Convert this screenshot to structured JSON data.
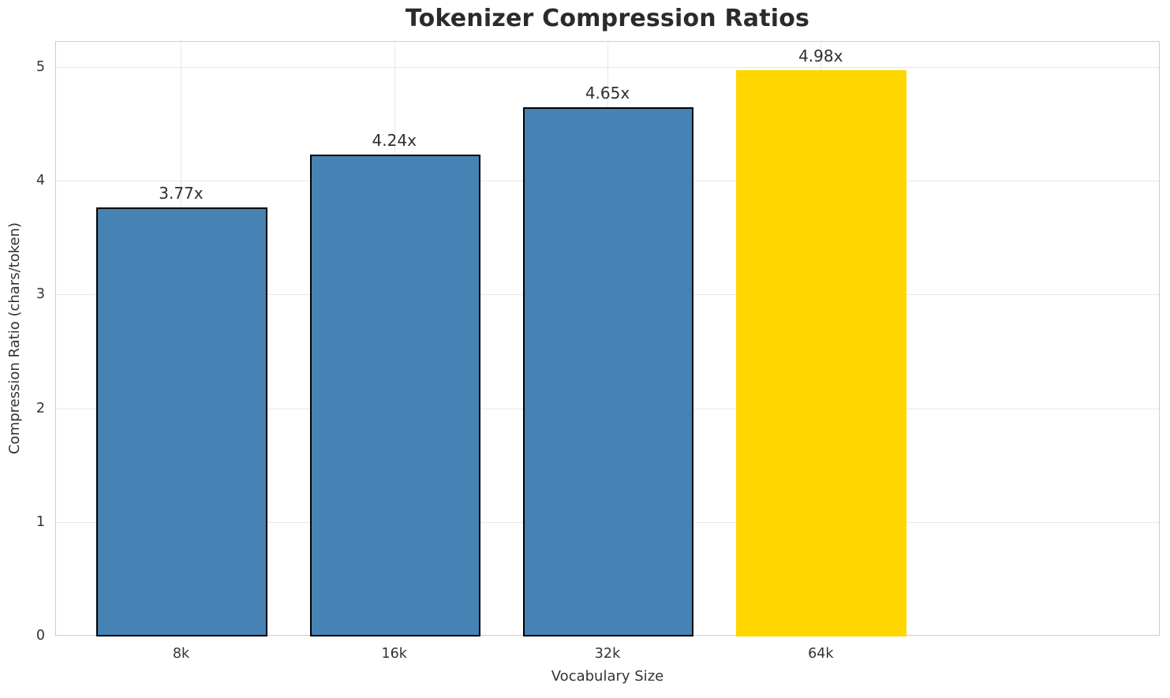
{
  "chart_data": {
    "type": "bar",
    "title": "Tokenizer Compression Ratios",
    "xlabel": "Vocabulary Size",
    "ylabel": "Compression Ratio (chars/token)",
    "categories": [
      "8k",
      "16k",
      "32k",
      "64k"
    ],
    "values": [
      3.77,
      4.24,
      4.65,
      4.98
    ],
    "bar_labels": [
      "3.77x",
      "4.24x",
      "4.65x",
      "4.98x"
    ],
    "bar_colors": [
      "#4682B4",
      "#4682B4",
      "#4682B4",
      "#FFD700"
    ],
    "bar_edge_colors": [
      "#000000",
      "#000000",
      "#000000",
      "none"
    ],
    "highlighted_bar": "64k",
    "ytick_labels": [
      "0",
      "1",
      "2",
      "3",
      "4",
      "5"
    ],
    "ytick_values": [
      0,
      1,
      2,
      3,
      4,
      5
    ],
    "ylim": [
      0,
      5.229
    ],
    "grid": "both",
    "legend_position": "none"
  },
  "colors": {
    "bar_blue": "#4682B4",
    "bar_gold": "#FFD700",
    "bar_edge": "#000000",
    "grid": "#e8e8e8",
    "spine": "#cdcdcd",
    "title_text": "#2b2b2b",
    "tick_text": "#333333"
  }
}
